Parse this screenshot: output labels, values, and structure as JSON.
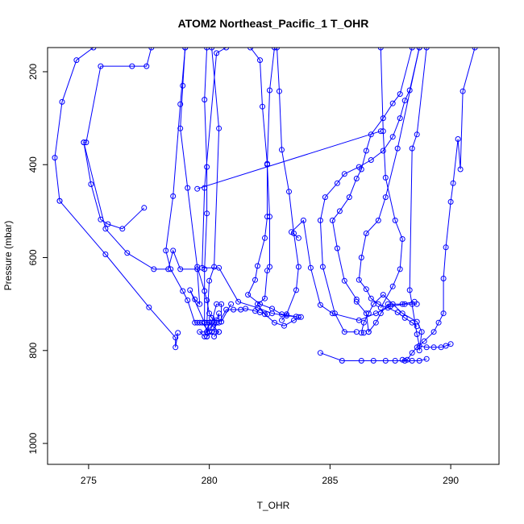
{
  "chart_data": {
    "type": "line",
    "title": "ATOM2 Northeast_Pacific_1 T_OHR",
    "xlabel": "T_OHR",
    "ylabel": "Pressure (mbar)",
    "xlim": [
      273.3,
      292.0
    ],
    "ylim": [
      1045,
      148
    ],
    "y_reversed": true,
    "x_ticks": [
      275,
      280,
      285,
      290
    ],
    "y_ticks": [
      200,
      400,
      600,
      800,
      1000
    ],
    "grid": false,
    "marker": "open-circle",
    "colors": {
      "series": "#0000ff",
      "axis": "#000000",
      "background": "#ffffff"
    },
    "series": [
      {
        "x": [
          277.6,
          277.4,
          276.8,
          275.5,
          274.9,
          274.8,
          275.1,
          275.5,
          275.8,
          276.4,
          277.3
        ],
        "y": [
          148,
          188,
          188,
          188,
          352,
          352,
          442,
          518,
          528,
          538,
          493
        ]
      },
      {
        "x": [
          275.2,
          274.5,
          273.9,
          273.6,
          273.8,
          273.8,
          275.7,
          277.5,
          278.6,
          278.6,
          278.7
        ],
        "y": [
          148,
          175,
          265,
          385,
          478,
          478,
          593,
          707,
          772,
          793,
          762
        ]
      },
      {
        "x": [
          274.8,
          275.7,
          276.6,
          277.7,
          278.3,
          278.5,
          278.8,
          279.5,
          279.6,
          279.4,
          279.2,
          279.8,
          279.9,
          279.6,
          279.8,
          280.0,
          279.9,
          280.1,
          280.3,
          280.1,
          279.9
        ],
        "y": [
          352,
          538,
          590,
          625,
          625,
          585,
          625,
          625,
          700,
          690,
          670,
          740,
          760,
          760,
          770,
          740,
          770,
          760,
          740,
          760,
          770
        ]
      },
      {
        "x": [
          279.0,
          278.8,
          278.5,
          278.2,
          278.4,
          278.9,
          279.1,
          279.4,
          279.6,
          279.5,
          279.7,
          280.0,
          280.2,
          279.9,
          279.8,
          280.0,
          280.4,
          280.2
        ],
        "y": [
          148,
          270,
          468,
          585,
          625,
          672,
          692,
          740,
          740,
          740,
          740,
          760,
          740,
          760,
          740,
          740,
          760,
          770
        ]
      },
      {
        "x": [
          279.9,
          279.8,
          279.9,
          279.9,
          279.8,
          279.8,
          280.0,
          280.2,
          280.3,
          280.2,
          280.4
        ],
        "y": [
          148,
          260,
          405,
          505,
          625,
          740,
          740,
          740,
          740,
          760,
          760
        ]
      },
      {
        "x": [
          280.1,
          280.4,
          280.2,
          280.0,
          279.9,
          280.1,
          280.3,
          280.5,
          280.5,
          280.9
        ],
        "y": [
          148,
          322,
          620,
          650,
          740,
          740,
          700,
          700,
          738,
          700
        ]
      },
      {
        "x": [
          279.0,
          278.9,
          278.8,
          279.1,
          279.5,
          279.8,
          279.9,
          280.0,
          280.1,
          280.3,
          280.4,
          280.4,
          280.7,
          281.0,
          281.3,
          281.5,
          281.9,
          282.1,
          282.4
        ],
        "y": [
          148,
          230,
          322,
          450,
          620,
          672,
          692,
          720,
          730,
          735,
          720,
          740,
          712,
          712,
          712,
          710,
          715,
          718,
          722
        ]
      },
      {
        "x": [
          279.5,
          287.1
        ],
        "y": [
          452,
          328
        ]
      },
      {
        "x": [
          280.7,
          280.3,
          279.8,
          279.7,
          280.4,
          281.2,
          282.0,
          282.6,
          283.2,
          283.7
        ],
        "y": [
          148,
          160,
          450,
          622,
          622,
          695,
          708,
          720,
          725,
          728
        ]
      },
      {
        "x": [
          281.7,
          282.1,
          282.2,
          282.4,
          282.4,
          282.3,
          282.0,
          281.9,
          281.6,
          282.1,
          282.6,
          283.0,
          283.6
        ],
        "y": [
          148,
          175,
          275,
          398,
          512,
          558,
          618,
          648,
          680,
          700,
          710,
          722,
          727
        ]
      },
      {
        "x": [
          282.7,
          282.5,
          282.4,
          282.5,
          282.5,
          282.4,
          282.3,
          282.0,
          282.3,
          282.7,
          283.1,
          283.5,
          283.8
        ],
        "y": [
          148,
          240,
          400,
          512,
          620,
          628,
          688,
          700,
          722,
          740,
          747,
          735,
          728
        ]
      },
      {
        "x": [
          282.8,
          282.9,
          283.0,
          283.3,
          283.5,
          283.7,
          283.6,
          283.2,
          283.0
        ],
        "y": [
          148,
          242,
          368,
          458,
          548,
          620,
          670,
          722,
          735
        ]
      },
      {
        "x": [
          283.7,
          283.4,
          283.9,
          284.2,
          284.6,
          285.1,
          286.2,
          286.9,
          287.5,
          288.1,
          288.4,
          288.6
        ],
        "y": [
          558,
          545,
          520,
          622,
          702,
          720,
          735,
          720,
          705,
          700,
          700,
          700
        ]
      },
      {
        "x": [
          287.1,
          287.2,
          287.3,
          287.7,
          288.0,
          287.9,
          287.6,
          287.1
        ],
        "y": [
          148,
          328,
          428,
          520,
          560,
          625,
          662,
          708
        ]
      },
      {
        "x": [
          288.4,
          287.9,
          287.6,
          287.2,
          286.7,
          286.5,
          286.3,
          286.1,
          285.8,
          285.4,
          285.1,
          285.3,
          285.6,
          286.1
        ],
        "y": [
          148,
          248,
          268,
          300,
          335,
          370,
          410,
          430,
          470,
          500,
          520,
          580,
          650,
          690
        ]
      },
      {
        "x": [
          288.7,
          288.3,
          288.1,
          287.9,
          287.6,
          287.2,
          286.7,
          286.2,
          285.6,
          285.3,
          284.8,
          284.6,
          284.7,
          285.2,
          285.6,
          286.1
        ],
        "y": [
          148,
          240,
          262,
          300,
          340,
          370,
          390,
          405,
          420,
          440,
          470,
          520,
          620,
          720,
          760,
          760
        ]
      },
      {
        "x": [
          288.7,
          287.8,
          287.3,
          287.0,
          286.5,
          286.3,
          286.2,
          286.5,
          286.7,
          287.0,
          287.4,
          287.8,
          288.1,
          288.4,
          288.6
        ],
        "y": [
          148,
          365,
          470,
          520,
          548,
          600,
          648,
          668,
          688,
          700,
          708,
          718,
          730,
          740,
          748
        ]
      },
      {
        "x": [
          289.0,
          288.6,
          288.4,
          288.3,
          288.6,
          288.7,
          289.0,
          289.3,
          289.6,
          289.8,
          290.0
        ],
        "y": [
          148,
          335,
          365,
          670,
          765,
          790,
          793,
          793,
          793,
          790,
          786
        ]
      },
      {
        "x": [
          291.0,
          290.5,
          290.4,
          290.3,
          290.1,
          290.0,
          289.8,
          289.7,
          289.7,
          289.5,
          289.3,
          288.9,
          288.6,
          288.4,
          288.2,
          288.0
        ],
        "y": [
          148,
          242,
          410,
          345,
          440,
          480,
          578,
          645,
          720,
          740,
          760,
          780,
          793,
          805,
          820,
          820
        ]
      },
      {
        "x": [
          284.6,
          285.5,
          286.3,
          286.8,
          287.3,
          287.7,
          288.1,
          288.4,
          288.7,
          289.0
        ],
        "y": [
          805,
          822,
          822,
          822,
          822,
          822,
          822,
          822,
          822,
          818
        ]
      },
      {
        "x": [
          286.1,
          286.5,
          286.6,
          286.6,
          286.9,
          287.1,
          287.4,
          288.0,
          288.5
        ],
        "y": [
          695,
          720,
          760,
          760,
          740,
          720,
          700,
          700,
          695
        ]
      },
      {
        "x": [
          286.4,
          286.3,
          286.4,
          286.6,
          286.8,
          287.2,
          287.6,
          288.0,
          288.6,
          288.8,
          288.7
        ],
        "y": [
          762,
          762,
          740,
          720,
          700,
          680,
          700,
          720,
          738,
          760,
          800
        ]
      }
    ]
  }
}
